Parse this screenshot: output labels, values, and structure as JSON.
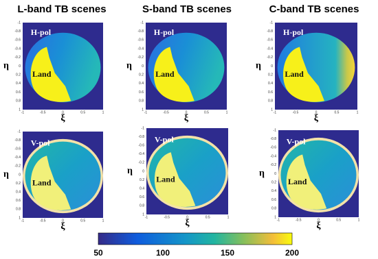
{
  "columns": [
    {
      "title": "L-band TB scenes",
      "panels": [
        {
          "label": "H-pol",
          "land": "Land"
        },
        {
          "label": "V-pol",
          "land": "Land"
        }
      ]
    },
    {
      "title": "S-band TB scenes",
      "panels": [
        {
          "label": "H-pol",
          "land": "Land"
        },
        {
          "label": "V-pol",
          "land": "Land"
        }
      ]
    },
    {
      "title": "C-band TB scenes",
      "panels": [
        {
          "label": "H-pol",
          "land": "Land"
        },
        {
          "label": "V-pol",
          "land": "Land"
        }
      ]
    }
  ],
  "axes": {
    "x_label": "ξ",
    "y_label": "η",
    "xticks": [
      -1,
      -0.5,
      0,
      0.5,
      1
    ],
    "yticks": [
      -1,
      -0.8,
      -0.6,
      -0.4,
      -0.2,
      0,
      0.2,
      0.4,
      0.6,
      0.8,
      1
    ]
  },
  "colorbar": {
    "ticks": [
      50,
      100,
      150,
      200
    ]
  }
}
